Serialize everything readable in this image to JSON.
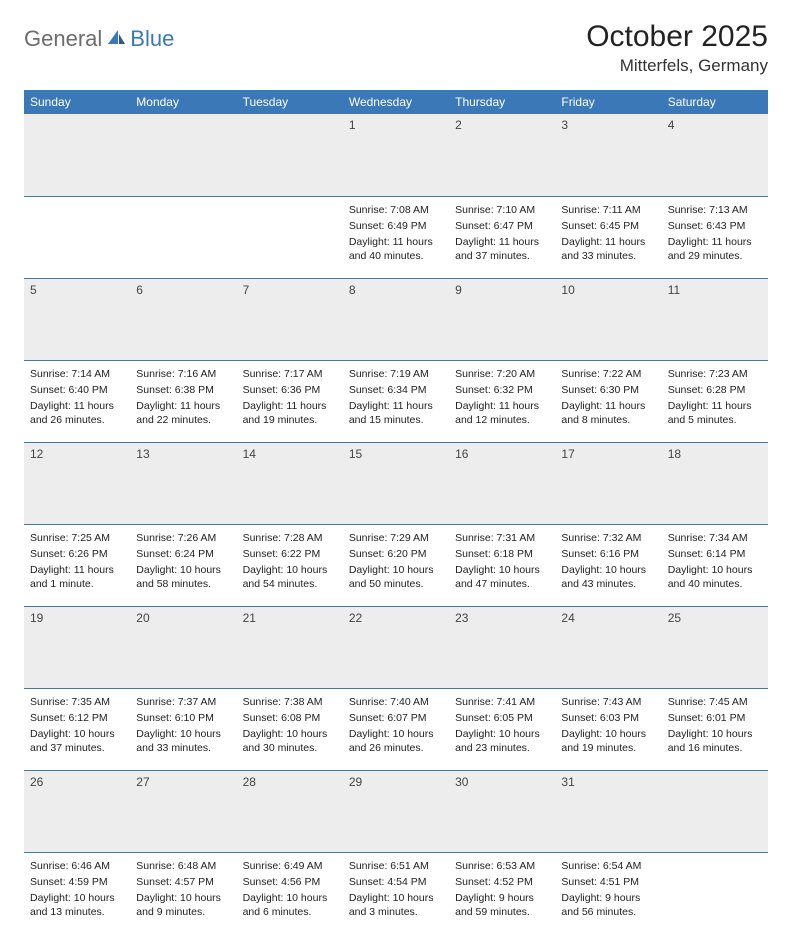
{
  "logo": {
    "part1": "General",
    "part2": "Blue"
  },
  "title": "October 2025",
  "location": "Mitterfels, Germany",
  "colors": {
    "header_bg": "#3b78b8",
    "header_text": "#ffffff",
    "daynum_bg": "#ededed",
    "border": "#3b78b8",
    "logo_gray": "#6d6d6d",
    "logo_blue": "#3b78b8"
  },
  "weekdays": [
    "Sunday",
    "Monday",
    "Tuesday",
    "Wednesday",
    "Thursday",
    "Friday",
    "Saturday"
  ],
  "weeks": [
    [
      null,
      null,
      null,
      {
        "n": "1",
        "sr": "Sunrise: 7:08 AM",
        "ss": "Sunset: 6:49 PM",
        "dl": "Daylight: 11 hours and 40 minutes."
      },
      {
        "n": "2",
        "sr": "Sunrise: 7:10 AM",
        "ss": "Sunset: 6:47 PM",
        "dl": "Daylight: 11 hours and 37 minutes."
      },
      {
        "n": "3",
        "sr": "Sunrise: 7:11 AM",
        "ss": "Sunset: 6:45 PM",
        "dl": "Daylight: 11 hours and 33 minutes."
      },
      {
        "n": "4",
        "sr": "Sunrise: 7:13 AM",
        "ss": "Sunset: 6:43 PM",
        "dl": "Daylight: 11 hours and 29 minutes."
      }
    ],
    [
      {
        "n": "5",
        "sr": "Sunrise: 7:14 AM",
        "ss": "Sunset: 6:40 PM",
        "dl": "Daylight: 11 hours and 26 minutes."
      },
      {
        "n": "6",
        "sr": "Sunrise: 7:16 AM",
        "ss": "Sunset: 6:38 PM",
        "dl": "Daylight: 11 hours and 22 minutes."
      },
      {
        "n": "7",
        "sr": "Sunrise: 7:17 AM",
        "ss": "Sunset: 6:36 PM",
        "dl": "Daylight: 11 hours and 19 minutes."
      },
      {
        "n": "8",
        "sr": "Sunrise: 7:19 AM",
        "ss": "Sunset: 6:34 PM",
        "dl": "Daylight: 11 hours and 15 minutes."
      },
      {
        "n": "9",
        "sr": "Sunrise: 7:20 AM",
        "ss": "Sunset: 6:32 PM",
        "dl": "Daylight: 11 hours and 12 minutes."
      },
      {
        "n": "10",
        "sr": "Sunrise: 7:22 AM",
        "ss": "Sunset: 6:30 PM",
        "dl": "Daylight: 11 hours and 8 minutes."
      },
      {
        "n": "11",
        "sr": "Sunrise: 7:23 AM",
        "ss": "Sunset: 6:28 PM",
        "dl": "Daylight: 11 hours and 5 minutes."
      }
    ],
    [
      {
        "n": "12",
        "sr": "Sunrise: 7:25 AM",
        "ss": "Sunset: 6:26 PM",
        "dl": "Daylight: 11 hours and 1 minute."
      },
      {
        "n": "13",
        "sr": "Sunrise: 7:26 AM",
        "ss": "Sunset: 6:24 PM",
        "dl": "Daylight: 10 hours and 58 minutes."
      },
      {
        "n": "14",
        "sr": "Sunrise: 7:28 AM",
        "ss": "Sunset: 6:22 PM",
        "dl": "Daylight: 10 hours and 54 minutes."
      },
      {
        "n": "15",
        "sr": "Sunrise: 7:29 AM",
        "ss": "Sunset: 6:20 PM",
        "dl": "Daylight: 10 hours and 50 minutes."
      },
      {
        "n": "16",
        "sr": "Sunrise: 7:31 AM",
        "ss": "Sunset: 6:18 PM",
        "dl": "Daylight: 10 hours and 47 minutes."
      },
      {
        "n": "17",
        "sr": "Sunrise: 7:32 AM",
        "ss": "Sunset: 6:16 PM",
        "dl": "Daylight: 10 hours and 43 minutes."
      },
      {
        "n": "18",
        "sr": "Sunrise: 7:34 AM",
        "ss": "Sunset: 6:14 PM",
        "dl": "Daylight: 10 hours and 40 minutes."
      }
    ],
    [
      {
        "n": "19",
        "sr": "Sunrise: 7:35 AM",
        "ss": "Sunset: 6:12 PM",
        "dl": "Daylight: 10 hours and 37 minutes."
      },
      {
        "n": "20",
        "sr": "Sunrise: 7:37 AM",
        "ss": "Sunset: 6:10 PM",
        "dl": "Daylight: 10 hours and 33 minutes."
      },
      {
        "n": "21",
        "sr": "Sunrise: 7:38 AM",
        "ss": "Sunset: 6:08 PM",
        "dl": "Daylight: 10 hours and 30 minutes."
      },
      {
        "n": "22",
        "sr": "Sunrise: 7:40 AM",
        "ss": "Sunset: 6:07 PM",
        "dl": "Daylight: 10 hours and 26 minutes."
      },
      {
        "n": "23",
        "sr": "Sunrise: 7:41 AM",
        "ss": "Sunset: 6:05 PM",
        "dl": "Daylight: 10 hours and 23 minutes."
      },
      {
        "n": "24",
        "sr": "Sunrise: 7:43 AM",
        "ss": "Sunset: 6:03 PM",
        "dl": "Daylight: 10 hours and 19 minutes."
      },
      {
        "n": "25",
        "sr": "Sunrise: 7:45 AM",
        "ss": "Sunset: 6:01 PM",
        "dl": "Daylight: 10 hours and 16 minutes."
      }
    ],
    [
      {
        "n": "26",
        "sr": "Sunrise: 6:46 AM",
        "ss": "Sunset: 4:59 PM",
        "dl": "Daylight: 10 hours and 13 minutes."
      },
      {
        "n": "27",
        "sr": "Sunrise: 6:48 AM",
        "ss": "Sunset: 4:57 PM",
        "dl": "Daylight: 10 hours and 9 minutes."
      },
      {
        "n": "28",
        "sr": "Sunrise: 6:49 AM",
        "ss": "Sunset: 4:56 PM",
        "dl": "Daylight: 10 hours and 6 minutes."
      },
      {
        "n": "29",
        "sr": "Sunrise: 6:51 AM",
        "ss": "Sunset: 4:54 PM",
        "dl": "Daylight: 10 hours and 3 minutes."
      },
      {
        "n": "30",
        "sr": "Sunrise: 6:53 AM",
        "ss": "Sunset: 4:52 PM",
        "dl": "Daylight: 9 hours and 59 minutes."
      },
      {
        "n": "31",
        "sr": "Sunrise: 6:54 AM",
        "ss": "Sunset: 4:51 PM",
        "dl": "Daylight: 9 hours and 56 minutes."
      },
      null
    ]
  ]
}
